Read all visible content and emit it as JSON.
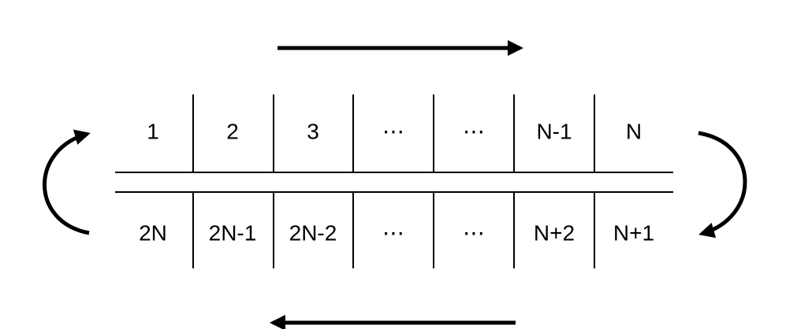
{
  "diagram": {
    "top_row": [
      "1",
      "2",
      "3",
      "⋯",
      "⋯",
      "N-1",
      "N"
    ],
    "bottom_row": [
      "2N",
      "2N-1",
      "2N-2",
      "⋯",
      "⋯",
      "N+2",
      "N+1"
    ]
  },
  "colors": {
    "stroke": "#000000",
    "background": "#ffffff"
  }
}
